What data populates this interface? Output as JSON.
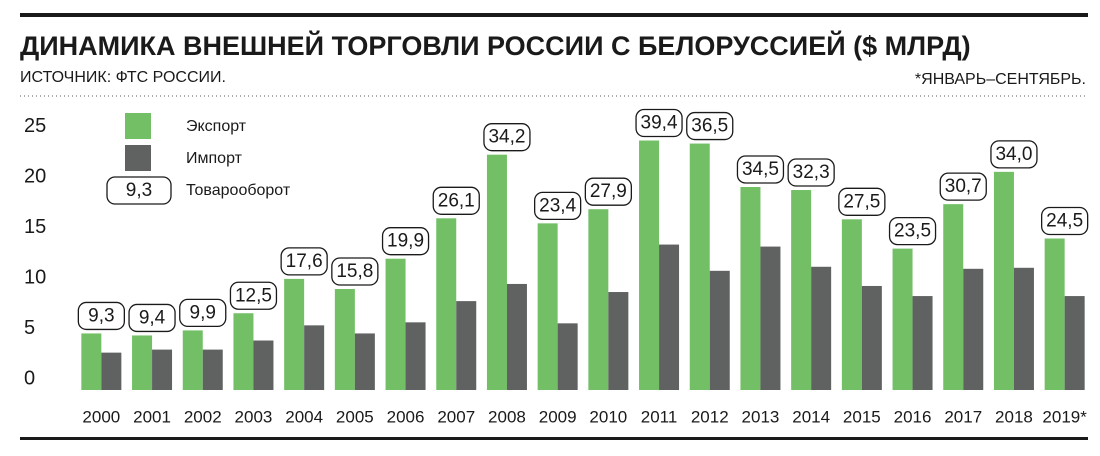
{
  "chart_data": {
    "type": "bar",
    "title": "ДИНАМИКА ВНЕШНЕЙ ТОРГОВЛИ РОССИИ С БЕЛОРУССИЕЙ ($ МЛРД)",
    "subtitle": "ИСТОЧНИК: ФТС РОССИИ.",
    "note": "*ЯНВАРЬ–СЕНТЯБРЬ.",
    "categories": [
      "2000",
      "2001",
      "2002",
      "2003",
      "2004",
      "2005",
      "2006",
      "2007",
      "2008",
      "2009",
      "2010",
      "2011",
      "2012",
      "2013",
      "2014",
      "2015",
      "2016",
      "2017",
      "2018",
      "2019*"
    ],
    "series": [
      {
        "name": "Экспорт",
        "color": "#72bf66",
        "values": [
          5.6,
          5.4,
          5.9,
          7.6,
          11.0,
          10.0,
          13.0,
          17.0,
          23.3,
          16.5,
          17.9,
          24.7,
          24.4,
          20.1,
          19.8,
          16.9,
          14.0,
          18.4,
          21.6,
          15.0
        ]
      },
      {
        "name": "Импорт",
        "color": "#5f6261",
        "values": [
          3.7,
          4.0,
          4.0,
          4.9,
          6.4,
          5.6,
          6.7,
          8.8,
          10.5,
          6.6,
          9.7,
          14.4,
          11.8,
          14.2,
          12.2,
          10.3,
          9.3,
          12.0,
          12.1,
          9.3
        ]
      },
      {
        "name": "Товарооборот",
        "values": [
          9.3,
          9.4,
          9.9,
          12.5,
          17.6,
          15.8,
          19.9,
          26.1,
          34.2,
          23.4,
          27.9,
          39.4,
          36.5,
          34.5,
          32.3,
          27.5,
          23.5,
          30.7,
          34.0,
          24.5
        ],
        "value_labels": [
          "9,3",
          "9,4",
          "9,9",
          "12,5",
          "17,6",
          "15,8",
          "19,9",
          "26,1",
          "34,2",
          "23,4",
          "27,9",
          "39,4",
          "36,5",
          "34,5",
          "32,3",
          "27,5",
          "23,5",
          "30,7",
          "34,0",
          "24,5"
        ]
      }
    ],
    "ylim": [
      0,
      25
    ],
    "yticks": [
      0,
      5,
      10,
      15,
      20,
      25
    ],
    "grid": false
  }
}
